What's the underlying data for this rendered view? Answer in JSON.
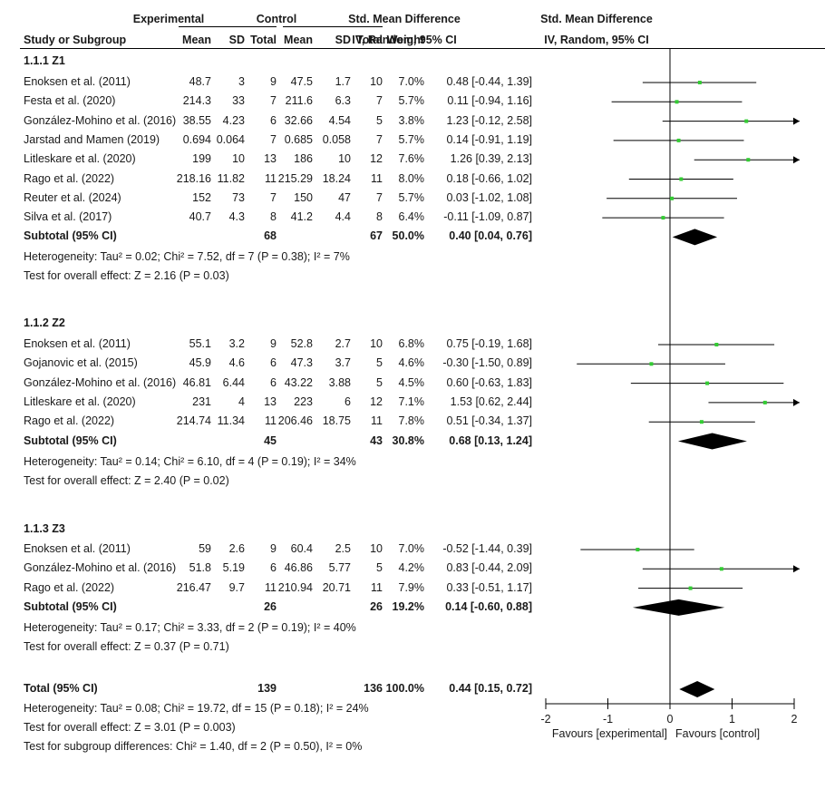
{
  "header": {
    "group_experimental": "Experimental",
    "group_control": "Control",
    "smd_left": "Std. Mean Difference",
    "smd_right": "Std. Mean Difference",
    "col_study": "Study or Subgroup",
    "col_mean_e": "Mean",
    "col_sd_e": "SD",
    "col_total_e": "Total",
    "col_mean_c": "Mean",
    "col_sd_c": "SD",
    "col_total_c": "Total",
    "col_weight": "Weight",
    "col_ci_left": "IV, Random, 95% CI",
    "col_ci_right": "IV, Random, 95% CI"
  },
  "groups": [
    {
      "title": "1.1.1 Z1",
      "studies": [
        {
          "name": "Enoksen et al. (2011)",
          "mean_e": "48.7",
          "sd_e": "3",
          "n_e": "9",
          "mean_c": "47.5",
          "sd_c": "1.7",
          "n_c": "10",
          "weight": "7.0%",
          "ci": "0.48 [-0.44, 1.39]"
        },
        {
          "name": "Festa et al. (2020)",
          "mean_e": "214.3",
          "sd_e": "33",
          "n_e": "7",
          "mean_c": "211.6",
          "sd_c": "6.3",
          "n_c": "7",
          "weight": "5.7%",
          "ci": "0.11 [-0.94, 1.16]"
        },
        {
          "name": "González-Mohino et al. (2016)",
          "mean_e": "38.55",
          "sd_e": "4.23",
          "n_e": "6",
          "mean_c": "32.66",
          "sd_c": "4.54",
          "n_c": "5",
          "weight": "3.8%",
          "ci": "1.23 [-0.12, 2.58]"
        },
        {
          "name": "Jarstad and Mamen (2019)",
          "mean_e": "0.694",
          "sd_e": "0.064",
          "n_e": "7",
          "mean_c": "0.685",
          "sd_c": "0.058",
          "n_c": "7",
          "weight": "5.7%",
          "ci": "0.14 [-0.91, 1.19]"
        },
        {
          "name": "Litleskare et al. (2020)",
          "mean_e": "199",
          "sd_e": "10",
          "n_e": "13",
          "mean_c": "186",
          "sd_c": "10",
          "n_c": "12",
          "weight": "7.6%",
          "ci": "1.26 [0.39, 2.13]"
        },
        {
          "name": "Rago et al. (2022)",
          "mean_e": "218.16",
          "sd_e": "11.82",
          "n_e": "11",
          "mean_c": "215.29",
          "sd_c": "18.24",
          "n_c": "11",
          "weight": "8.0%",
          "ci": "0.18 [-0.66, 1.02]"
        },
        {
          "name": "Reuter et al. (2024)",
          "mean_e": "152",
          "sd_e": "73",
          "n_e": "7",
          "mean_c": "150",
          "sd_c": "47",
          "n_c": "7",
          "weight": "5.7%",
          "ci": "0.03 [-1.02, 1.08]"
        },
        {
          "name": "Silva et al. (2017)",
          "mean_e": "40.7",
          "sd_e": "4.3",
          "n_e": "8",
          "mean_c": "41.2",
          "sd_c": "4.4",
          "n_c": "8",
          "weight": "6.4%",
          "ci": "-0.11 [-1.09, 0.87]"
        }
      ],
      "subtotal": {
        "label": "Subtotal (95% CI)",
        "n_e": "68",
        "n_c": "67",
        "weight": "50.0%",
        "ci": "0.40 [0.04, 0.76]"
      },
      "heterogeneity": "Heterogeneity: Tau² = 0.02; Chi² = 7.52, df = 7 (P = 0.38); I² = 7%",
      "overall": "Test for overall effect: Z = 2.16 (P = 0.03)"
    },
    {
      "title": "1.1.2 Z2",
      "studies": [
        {
          "name": "Enoksen et al. (2011)",
          "mean_e": "55.1",
          "sd_e": "3.2",
          "n_e": "9",
          "mean_c": "52.8",
          "sd_c": "2.7",
          "n_c": "10",
          "weight": "6.8%",
          "ci": "0.75 [-0.19, 1.68]"
        },
        {
          "name": "Gojanovic et al. (2015)",
          "mean_e": "45.9",
          "sd_e": "4.6",
          "n_e": "6",
          "mean_c": "47.3",
          "sd_c": "3.7",
          "n_c": "5",
          "weight": "4.6%",
          "ci": "-0.30 [-1.50, 0.89]"
        },
        {
          "name": "González-Mohino et al. (2016)",
          "mean_e": "46.81",
          "sd_e": "6.44",
          "n_e": "6",
          "mean_c": "43.22",
          "sd_c": "3.88",
          "n_c": "5",
          "weight": "4.5%",
          "ci": "0.60 [-0.63, 1.83]"
        },
        {
          "name": "Litleskare et al. (2020)",
          "mean_e": "231",
          "sd_e": "4",
          "n_e": "13",
          "mean_c": "223",
          "sd_c": "6",
          "n_c": "12",
          "weight": "7.1%",
          "ci": "1.53 [0.62, 2.44]"
        },
        {
          "name": "Rago et al. (2022)",
          "mean_e": "214.74",
          "sd_e": "11.34",
          "n_e": "11",
          "mean_c": "206.46",
          "sd_c": "18.75",
          "n_c": "11",
          "weight": "7.8%",
          "ci": "0.51 [-0.34, 1.37]"
        }
      ],
      "subtotal": {
        "label": "Subtotal (95% CI)",
        "n_e": "45",
        "n_c": "43",
        "weight": "30.8%",
        "ci": "0.68 [0.13, 1.24]"
      },
      "heterogeneity": "Heterogeneity: Tau² = 0.14; Chi² = 6.10, df = 4 (P = 0.19); I² = 34%",
      "overall": "Test for overall effect: Z = 2.40 (P = 0.02)"
    },
    {
      "title": "1.1.3 Z3",
      "studies": [
        {
          "name": "Enoksen et al. (2011)",
          "mean_e": "59",
          "sd_e": "2.6",
          "n_e": "9",
          "mean_c": "60.4",
          "sd_c": "2.5",
          "n_c": "10",
          "weight": "7.0%",
          "ci": "-0.52 [-1.44, 0.39]"
        },
        {
          "name": "González-Mohino et al. (2016)",
          "mean_e": "51.8",
          "sd_e": "5.19",
          "n_e": "6",
          "mean_c": "46.86",
          "sd_c": "5.77",
          "n_c": "5",
          "weight": "4.2%",
          "ci": "0.83 [-0.44, 2.09]"
        },
        {
          "name": "Rago et al. (2022)",
          "mean_e": "216.47",
          "sd_e": "9.7",
          "n_e": "11",
          "mean_c": "210.94",
          "sd_c": "20.71",
          "n_c": "11",
          "weight": "7.9%",
          "ci": "0.33 [-0.51, 1.17]"
        }
      ],
      "subtotal": {
        "label": "Subtotal (95% CI)",
        "n_e": "26",
        "n_c": "26",
        "weight": "19.2%",
        "ci": "0.14 [-0.60, 0.88]"
      },
      "heterogeneity": "Heterogeneity: Tau² = 0.17; Chi² = 3.33, df = 2 (P = 0.19); I² = 40%",
      "overall": "Test for overall effect: Z = 0.37 (P = 0.71)"
    }
  ],
  "total": {
    "label": "Total (95% CI)",
    "n_e": "139",
    "n_c": "136",
    "weight": "100.0%",
    "ci": "0.44 [0.15, 0.72]",
    "heterogeneity": "Heterogeneity: Tau² = 0.08; Chi² = 19.72, df = 15 (P = 0.18); I² = 24%",
    "overall": "Test for overall effect: Z = 3.01 (P = 0.003)",
    "subgroup": "Test for subgroup differences: Chi² = 1.40, df = 2 (P = 0.50), I² = 0%"
  },
  "axis": {
    "ticks": [
      "-2",
      "-1",
      "0",
      "1",
      "2"
    ],
    "favours_left": "Favours [experimental]",
    "favours_right": "Favours [control]"
  },
  "chart_data": {
    "type": "forest",
    "xlim": [
      -2,
      2
    ],
    "ticks": [
      -2,
      -1,
      0,
      1,
      2
    ],
    "null_line": 0,
    "groups": [
      {
        "name": "1.1.1 Z1",
        "studies": [
          {
            "est": 0.48,
            "lo": -0.44,
            "hi": 1.39
          },
          {
            "est": 0.11,
            "lo": -0.94,
            "hi": 1.16
          },
          {
            "est": 1.23,
            "lo": -0.12,
            "hi": 2.58
          },
          {
            "est": 0.14,
            "lo": -0.91,
            "hi": 1.19
          },
          {
            "est": 1.26,
            "lo": 0.39,
            "hi": 2.13
          },
          {
            "est": 0.18,
            "lo": -0.66,
            "hi": 1.02
          },
          {
            "est": 0.03,
            "lo": -1.02,
            "hi": 1.08
          },
          {
            "est": -0.11,
            "lo": -1.09,
            "hi": 0.87
          }
        ],
        "subtotal": {
          "est": 0.4,
          "lo": 0.04,
          "hi": 0.76
        }
      },
      {
        "name": "1.1.2 Z2",
        "studies": [
          {
            "est": 0.75,
            "lo": -0.19,
            "hi": 1.68
          },
          {
            "est": -0.3,
            "lo": -1.5,
            "hi": 0.89
          },
          {
            "est": 0.6,
            "lo": -0.63,
            "hi": 1.83
          },
          {
            "est": 1.53,
            "lo": 0.62,
            "hi": 2.44
          },
          {
            "est": 0.51,
            "lo": -0.34,
            "hi": 1.37
          }
        ],
        "subtotal": {
          "est": 0.68,
          "lo": 0.13,
          "hi": 1.24
        }
      },
      {
        "name": "1.1.3 Z3",
        "studies": [
          {
            "est": -0.52,
            "lo": -1.44,
            "hi": 0.39
          },
          {
            "est": 0.83,
            "lo": -0.44,
            "hi": 2.09
          },
          {
            "est": 0.33,
            "lo": -0.51,
            "hi": 1.17
          }
        ],
        "subtotal": {
          "est": 0.14,
          "lo": -0.6,
          "hi": 0.88
        }
      }
    ],
    "total": {
      "est": 0.44,
      "lo": 0.15,
      "hi": 0.72
    },
    "colors": {
      "point": "#33cc33",
      "line": "#000000",
      "diamond": "#000000"
    }
  }
}
